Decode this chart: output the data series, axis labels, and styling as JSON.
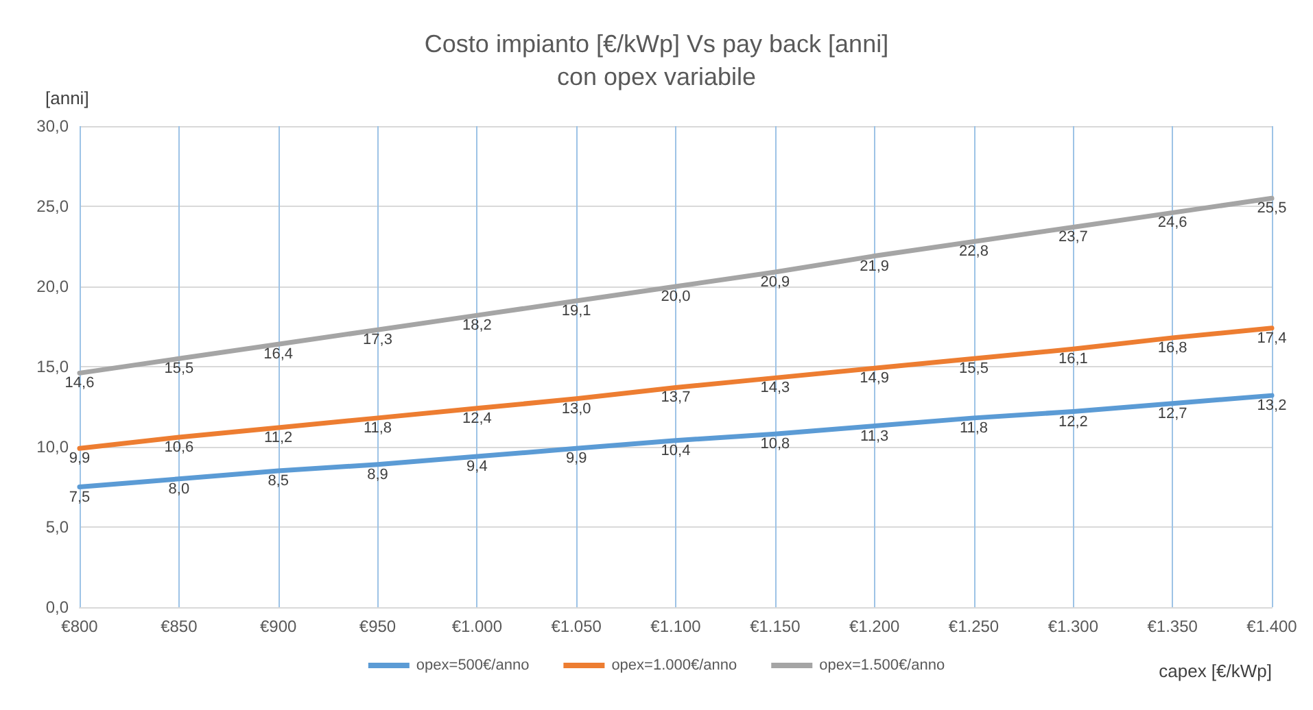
{
  "chart_data": {
    "type": "line",
    "title": "Costo impianto [€/kWp] Vs pay back [anni]",
    "subtitle": "con opex variabile",
    "xlabel": "capex [€/kWp]",
    "ylabel": "[anni]",
    "x": [
      800,
      850,
      900,
      950,
      1000,
      1050,
      1100,
      1150,
      1200,
      1250,
      1300,
      1350,
      1400
    ],
    "xlim": [
      800,
      1400
    ],
    "xticks": [
      {
        "value": 800,
        "label": "€800"
      },
      {
        "value": 850,
        "label": "€850"
      },
      {
        "value": 900,
        "label": "€900"
      },
      {
        "value": 950,
        "label": "€950"
      },
      {
        "value": 1000,
        "label": "€1.000"
      },
      {
        "value": 1050,
        "label": "€1.050"
      },
      {
        "value": 1100,
        "label": "€1.100"
      },
      {
        "value": 1150,
        "label": "€1.150"
      },
      {
        "value": 1200,
        "label": "€1.200"
      },
      {
        "value": 1250,
        "label": "€1.250"
      },
      {
        "value": 1300,
        "label": "€1.300"
      },
      {
        "value": 1350,
        "label": "€1.350"
      },
      {
        "value": 1400,
        "label": "€1.400"
      }
    ],
    "ylim": [
      0,
      30
    ],
    "yticks": [
      {
        "value": 0,
        "label": "0,0"
      },
      {
        "value": 5,
        "label": "5,0"
      },
      {
        "value": 10,
        "label": "10,0"
      },
      {
        "value": 15,
        "label": "15,0"
      },
      {
        "value": 20,
        "label": "20,0"
      },
      {
        "value": 25,
        "label": "25,0"
      },
      {
        "value": 30,
        "label": "30,0"
      }
    ],
    "series": [
      {
        "name": "opex=500€/anno",
        "color": "#5b9bd5",
        "values": [
          7.5,
          8.0,
          8.5,
          8.9,
          9.4,
          9.9,
          10.4,
          10.8,
          11.3,
          11.8,
          12.2,
          12.7,
          13.2
        ],
        "value_labels": [
          "7,5",
          "8,0",
          "8,5",
          "8,9",
          "9,4",
          "9,9",
          "10,4",
          "10,8",
          "11,3",
          "11,8",
          "12,2",
          "12,7",
          "13,2"
        ]
      },
      {
        "name": "opex=1.000€/anno",
        "color": "#ed7d31",
        "values": [
          9.9,
          10.6,
          11.2,
          11.8,
          12.4,
          13.0,
          13.7,
          14.3,
          14.9,
          15.5,
          16.1,
          16.8,
          17.4
        ],
        "value_labels": [
          "9,9",
          "10,6",
          "11,2",
          "11,8",
          "12,4",
          "13,0",
          "13,7",
          "14,3",
          "14,9",
          "15,5",
          "16,1",
          "16,8",
          "17,4"
        ]
      },
      {
        "name": "opex=1.500€/anno",
        "color": "#a5a5a5",
        "values": [
          14.6,
          15.5,
          16.4,
          17.3,
          18.2,
          19.1,
          20.0,
          20.9,
          21.9,
          22.8,
          23.7,
          24.6,
          25.5
        ],
        "value_labels": [
          "14,6",
          "15,5",
          "16,4",
          "17,3",
          "18,2",
          "19,1",
          "20,0",
          "20,9",
          "21,9",
          "22,8",
          "23,7",
          "24,6",
          "25,5"
        ]
      }
    ],
    "grid": true,
    "legend": "bottom",
    "marker": "none",
    "line_style": "solid"
  }
}
